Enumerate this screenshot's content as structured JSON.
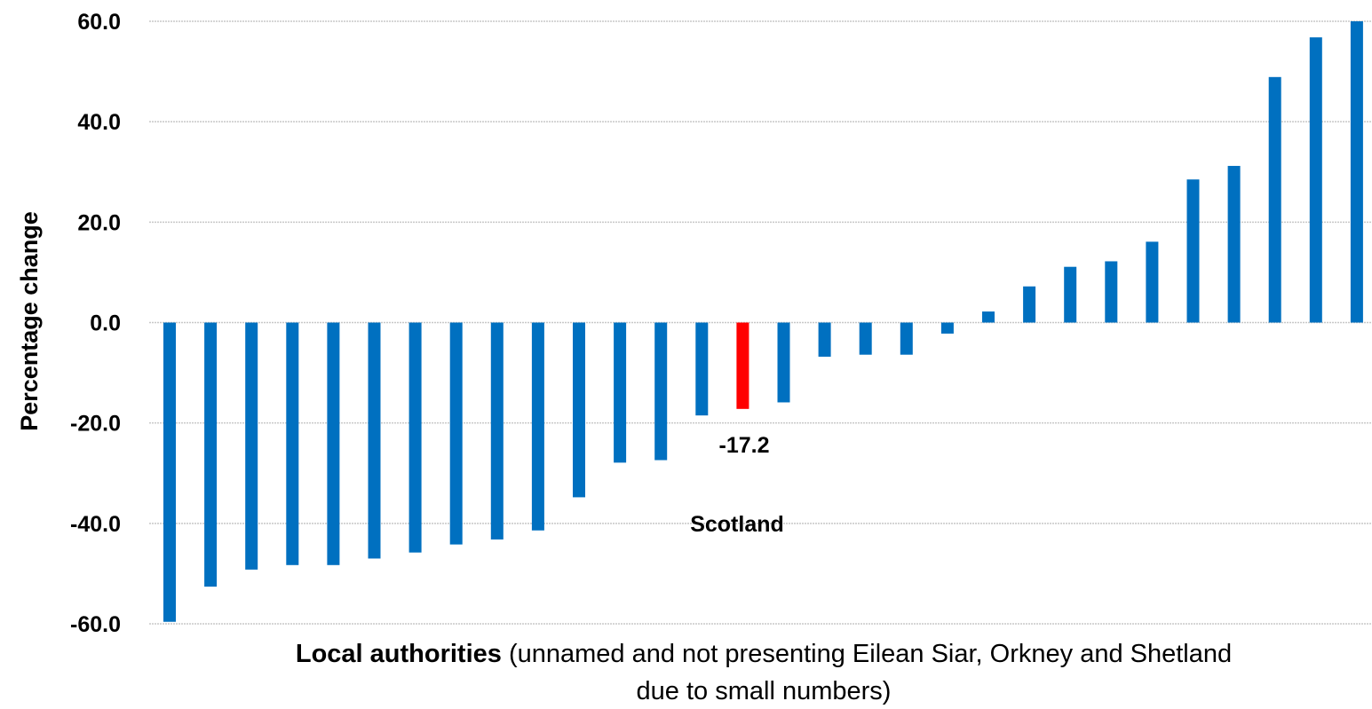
{
  "chart_data": {
    "type": "bar",
    "title": "",
    "ylabel": "Percentage change",
    "xlabel_bold": "Local authorities",
    "xlabel_rest": " (unnamed and not presenting Eilean Siar, Orkney and Shetland",
    "xlabel_line2": "due to small numbers)",
    "ylim": [
      -60,
      60
    ],
    "yticks": [
      "60.0",
      "40.0",
      "20.0",
      "0.0",
      "-20.0",
      "-40.0",
      "-60.0"
    ],
    "ytick_values": [
      60,
      40,
      20,
      0,
      -20,
      -40,
      -60
    ],
    "grid": true,
    "values": [
      -59.6,
      -52.6,
      -49.2,
      -48.3,
      -48.3,
      -47.0,
      -45.8,
      -44.2,
      -43.2,
      -41.4,
      -34.8,
      -27.9,
      -27.4,
      -18.5,
      -17.2,
      -15.9,
      -6.8,
      -6.4,
      -6.4,
      -2.2,
      2.2,
      7.2,
      11.1,
      12.2,
      16.1,
      28.5,
      31.2,
      48.9,
      56.8,
      60.0
    ],
    "highlight_index": 14,
    "colors": {
      "bar": "#0070C0",
      "highlight": "#FF0000",
      "grid": "#C8C8C8"
    },
    "annotations": {
      "value_label": "-17.2",
      "name_label": "Scotland"
    }
  }
}
